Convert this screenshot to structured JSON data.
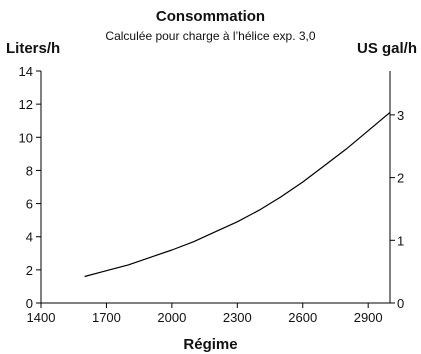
{
  "chart_data": {
    "type": "line",
    "title": "Consommation",
    "subtitle": "Calculée pour charge à l’hélice exp. 3,0",
    "xlabel": "Régime",
    "ylabel_left": "Liters/h",
    "ylabel_right": "US gal/h",
    "xlim": [
      1400,
      3000
    ],
    "ylim_left": [
      0,
      14
    ],
    "ylim_right": [
      0,
      3.7
    ],
    "x_ticks": [
      "1400",
      "1700",
      "2000",
      "2300",
      "2600",
      "2900"
    ],
    "y_left_ticks": [
      "0",
      "2",
      "4",
      "6",
      "8",
      "10",
      "12",
      "14"
    ],
    "y_right_ticks": [
      "0",
      "1",
      "2",
      "3"
    ],
    "grid": false,
    "series": [
      {
        "x": [
          1600,
          1700,
          1800,
          1900,
          2000,
          2100,
          2200,
          2300,
          2400,
          2500,
          2600,
          2700,
          2800,
          2900,
          3000
        ],
        "values": [
          1.6,
          1.95,
          2.3,
          2.75,
          3.2,
          3.7,
          4.3,
          4.9,
          5.6,
          6.4,
          7.3,
          8.3,
          9.3,
          10.4,
          11.5
        ]
      }
    ],
    "line_color": "#000000"
  }
}
